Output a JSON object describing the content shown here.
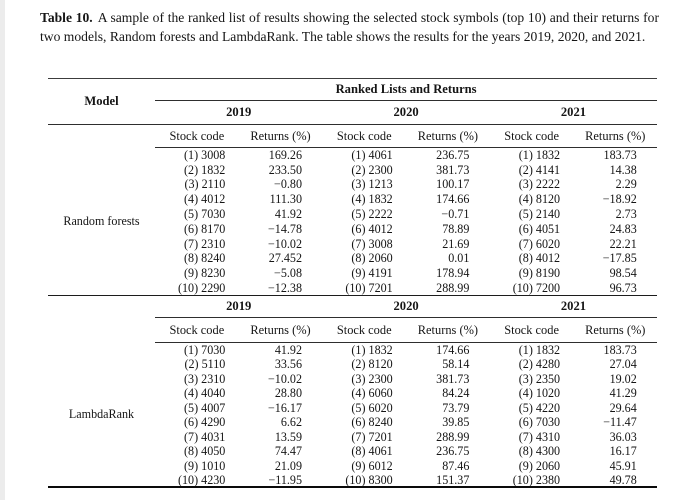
{
  "caption": {
    "label": "Table 10.",
    "text": "A sample of the ranked list of results showing the selected stock symbols (top 10) and their returns for two models, Random forests and LambdaRank. The table shows the results for the years 2019, 2020, and 2021."
  },
  "table": {
    "model_header": "Model",
    "group_header": "Ranked Lists and Returns",
    "years": [
      "2019",
      "2020",
      "2021"
    ],
    "col_headers": [
      "Stock code",
      "Returns (%)"
    ],
    "sections": [
      {
        "model": "Random forests",
        "rows": [
          [
            "(1) 3008",
            "169.26",
            "(1) 4061",
            "236.75",
            "(1) 1832",
            "183.73"
          ],
          [
            "(2) 1832",
            "233.50",
            "(2) 2300",
            "381.73",
            "(2) 4141",
            "14.38"
          ],
          [
            "(3) 2110",
            "−0.80",
            "(3) 1213",
            "100.17",
            "(3) 2222",
            "2.29"
          ],
          [
            "(4) 4012",
            "111.30",
            "(4) 1832",
            "174.66",
            "(4) 8120",
            "−18.92"
          ],
          [
            "(5) 7030",
            "41.92",
            "(5) 2222",
            "−0.71",
            "(5) 2140",
            "2.73"
          ],
          [
            "(6) 8170",
            "−14.78",
            "(6) 4012",
            "78.89",
            "(6) 4051",
            "24.83"
          ],
          [
            "(7) 2310",
            "−10.02",
            "(7) 3008",
            "21.69",
            "(7) 6020",
            "22.21"
          ],
          [
            "(8) 8240",
            "27.452",
            "(8) 2060",
            "0.01",
            "(8) 4012",
            "−17.85"
          ],
          [
            "(9) 8230",
            "−5.08",
            "(9) 4191",
            "178.94",
            "(9) 8190",
            "98.54"
          ],
          [
            "(10) 2290",
            "−12.38",
            "(10) 7201",
            "288.99",
            "(10) 7200",
            "96.73"
          ]
        ]
      },
      {
        "model": "LambdaRank",
        "rows": [
          [
            "(1) 7030",
            "41.92",
            "(1) 1832",
            "174.66",
            "(1) 1832",
            "183.73"
          ],
          [
            "(2) 5110",
            "33.56",
            "(2) 8120",
            "58.14",
            "(2) 4280",
            "27.04"
          ],
          [
            "(3) 2310",
            "−10.02",
            "(3) 2300",
            "381.73",
            "(3) 2350",
            "19.02"
          ],
          [
            "(4) 4040",
            "28.80",
            "(4) 6060",
            "84.24",
            "(4) 1020",
            "41.29"
          ],
          [
            "(5) 4007",
            "−16.17",
            "(5) 6020",
            "73.79",
            "(5) 4220",
            "29.64"
          ],
          [
            "(6) 4290",
            "6.62",
            "(6) 8240",
            "39.85",
            "(6) 7030",
            "−11.47"
          ],
          [
            "(7) 4031",
            "13.59",
            "(7) 7201",
            "288.99",
            "(7) 4310",
            "36.03"
          ],
          [
            "(8) 4050",
            "74.47",
            "(8) 4061",
            "236.75",
            "(8) 4300",
            "16.17"
          ],
          [
            "(9) 1010",
            "21.09",
            "(9) 6012",
            "87.46",
            "(9) 2060",
            "45.91"
          ],
          [
            "(10) 4230",
            "−11.95",
            "(10) 8300",
            "151.37",
            "(10) 2380",
            "49.78"
          ]
        ]
      }
    ]
  }
}
